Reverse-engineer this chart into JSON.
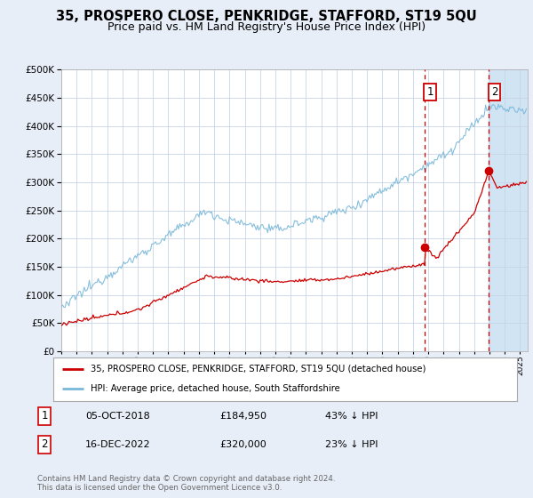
{
  "title": "35, PROSPERO CLOSE, PENKRIDGE, STAFFORD, ST19 5QU",
  "subtitle": "Price paid vs. HM Land Registry's House Price Index (HPI)",
  "legend_line1": "35, PROSPERO CLOSE, PENKRIDGE, STAFFORD, ST19 5QU (detached house)",
  "legend_line2": "HPI: Average price, detached house, South Staffordshire",
  "footnote": "Contains HM Land Registry data © Crown copyright and database right 2024.\nThis data is licensed under the Open Government Licence v3.0.",
  "marker1_date": "05-OCT-2018",
  "marker1_price": 184950,
  "marker1_label": "£184,950",
  "marker1_hpi_diff": "43% ↓ HPI",
  "marker2_date": "16-DEC-2022",
  "marker2_price": 320000,
  "marker2_label": "£320,000",
  "marker2_hpi_diff": "23% ↓ HPI",
  "marker1_x": 2018.75,
  "marker2_x": 2022.96,
  "ylim": [
    0,
    500000
  ],
  "xlim": [
    1995.0,
    2025.5
  ],
  "hpi_color": "#7ab8d9",
  "price_color": "#cc0000",
  "marker_color": "#cc0000",
  "bg_color": "#e8eef8",
  "plot_bg": "#ffffff",
  "grid_color": "#c8d4e8",
  "shade_color": "#d0e4f4",
  "title_fontsize": 10.5,
  "subtitle_fontsize": 9
}
